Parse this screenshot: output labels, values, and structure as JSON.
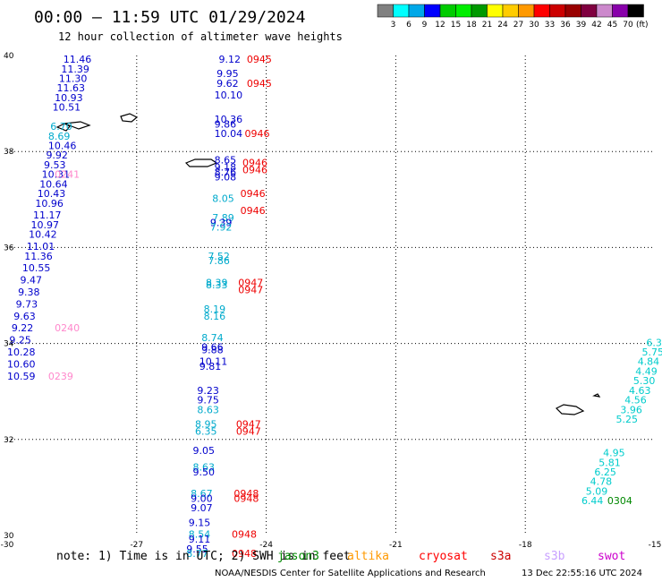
{
  "header": {
    "title": "00:00 – 11:59 UTC 01/29/2024",
    "subtitle": "12 hour collection of altimeter wave heights"
  },
  "legend": {
    "colors": [
      "#808080",
      "#00ffff",
      "#00a8e8",
      "#0000ff",
      "#00cc00",
      "#00ee00",
      "#009900",
      "#ffff00",
      "#ffcc00",
      "#ff9900",
      "#ff0000",
      "#cc0000",
      "#990000",
      "#800040",
      "#cc88cc",
      "#8800aa",
      "#000000"
    ],
    "labels": [
      "3",
      "6",
      "9",
      "12",
      "15",
      "18",
      "21",
      "24",
      "27",
      "30",
      "33",
      "36",
      "39",
      "42",
      "45",
      "70"
    ],
    "unit": "(ft)"
  },
  "footer": {
    "note": "note: 1) Time is in UTC; 2) SWH is in feet",
    "agency": "NOAA/NESDIS Center for Satellite Applications and Research",
    "timestamp": "13 Dec 22:55:16 UTC 2024",
    "satellites": [
      {
        "name": "jason3",
        "color": "#008800"
      },
      {
        "name": "altika",
        "color": "#ff9900"
      },
      {
        "name": "cryosat",
        "color": "#ff0000"
      },
      {
        "name": "s3a",
        "color": "#cc0000"
      },
      {
        "name": "s3b",
        "color": "#c8a0ff"
      },
      {
        "name": "swot",
        "color": "#cc00cc"
      }
    ]
  },
  "chart_data": {
    "type": "scatter",
    "title": "12 hour collection of altimeter wave heights",
    "xlim": [
      -30,
      -15
    ],
    "ylim": [
      30,
      40
    ],
    "x_ticks": [
      "-30",
      "-27",
      "-24",
      "-21",
      "-18",
      "-15"
    ],
    "y_ticks": [
      "30",
      "32",
      "34",
      "36",
      "38",
      "40"
    ],
    "grid": true,
    "values": [
      {
        "x": -28.7,
        "y": 39.85,
        "text": "11.46",
        "color": "#0000cc"
      },
      {
        "x": -28.75,
        "y": 39.65,
        "text": "11.39",
        "color": "#0000cc"
      },
      {
        "x": -28.8,
        "y": 39.45,
        "text": "11.30",
        "color": "#0000cc"
      },
      {
        "x": -28.85,
        "y": 39.25,
        "text": "11.63",
        "color": "#0000cc"
      },
      {
        "x": -28.9,
        "y": 39.05,
        "text": "10.93",
        "color": "#0000cc"
      },
      {
        "x": -28.95,
        "y": 38.85,
        "text": "10.51",
        "color": "#0000cc"
      },
      {
        "x": -29.0,
        "y": 38.45,
        "text": "6.70",
        "color": "#00aacc"
      },
      {
        "x": -29.05,
        "y": 38.25,
        "text": "8.69",
        "color": "#00aacc"
      },
      {
        "x": -29.05,
        "y": 38.05,
        "text": "10.46",
        "color": "#0000cc"
      },
      {
        "x": -29.1,
        "y": 37.85,
        "text": "9.92",
        "color": "#0000cc"
      },
      {
        "x": -29.15,
        "y": 37.65,
        "text": "9.53",
        "color": "#0000cc"
      },
      {
        "x": -29.2,
        "y": 37.45,
        "text": "10.31",
        "color": "#0000cc"
      },
      {
        "x": -29.25,
        "y": 37.25,
        "text": "10.64",
        "color": "#0000cc"
      },
      {
        "x": -29.3,
        "y": 37.05,
        "text": "10.43",
        "color": "#0000cc"
      },
      {
        "x": -29.35,
        "y": 36.85,
        "text": "10.96",
        "color": "#0000cc"
      },
      {
        "x": -29.4,
        "y": 36.6,
        "text": "11.17",
        "color": "#0000cc"
      },
      {
        "x": -29.45,
        "y": 36.4,
        "text": "10.97",
        "color": "#0000cc"
      },
      {
        "x": -29.5,
        "y": 36.2,
        "text": "10.42",
        "color": "#0000cc"
      },
      {
        "x": -29.55,
        "y": 35.95,
        "text": "11.01",
        "color": "#0000cc"
      },
      {
        "x": -29.6,
        "y": 35.75,
        "text": "11.36",
        "color": "#0000cc"
      },
      {
        "x": -29.65,
        "y": 35.5,
        "text": "10.55",
        "color": "#0000cc"
      },
      {
        "x": -29.7,
        "y": 35.25,
        "text": "9.47",
        "color": "#0000cc"
      },
      {
        "x": -29.75,
        "y": 35.0,
        "text": "9.38",
        "color": "#0000cc"
      },
      {
        "x": -29.8,
        "y": 34.75,
        "text": "9.73",
        "color": "#0000cc"
      },
      {
        "x": -29.85,
        "y": 34.5,
        "text": "9.63",
        "color": "#0000cc"
      },
      {
        "x": -29.9,
        "y": 34.25,
        "text": "9.22",
        "color": "#0000cc"
      },
      {
        "x": -29.95,
        "y": 34.0,
        "text": "9.25",
        "color": "#0000cc"
      },
      {
        "x": -30.0,
        "y": 33.75,
        "text": "10.28",
        "color": "#0000cc"
      },
      {
        "x": -30.0,
        "y": 33.5,
        "text": "10.60",
        "color": "#0000cc"
      },
      {
        "x": -30.0,
        "y": 33.25,
        "text": "10.59",
        "color": "#0000cc"
      },
      {
        "x": -28.9,
        "y": 37.45,
        "text": "0241",
        "color": "#ff88cc"
      },
      {
        "x": -28.9,
        "y": 34.25,
        "text": "0240",
        "color": "#ff88cc"
      },
      {
        "x": -29.05,
        "y": 33.25,
        "text": "0239",
        "color": "#ff88cc"
      },
      {
        "x": -25.1,
        "y": 39.85,
        "text": "9.12",
        "color": "#0000cc"
      },
      {
        "x": -25.15,
        "y": 39.55,
        "text": "9.95",
        "color": "#0000cc"
      },
      {
        "x": -25.15,
        "y": 39.35,
        "text": "9.62",
        "color": "#0000cc"
      },
      {
        "x": -25.2,
        "y": 39.1,
        "text": "10.10",
        "color": "#0000cc"
      },
      {
        "x": -25.2,
        "y": 38.6,
        "text": "10.36",
        "color": "#0000cc"
      },
      {
        "x": -25.2,
        "y": 38.5,
        "text": "9.86",
        "color": "#0000cc"
      },
      {
        "x": -25.2,
        "y": 38.3,
        "text": "10.04",
        "color": "#0000cc"
      },
      {
        "x": -25.2,
        "y": 37.75,
        "text": "8.65",
        "color": "#0000cc"
      },
      {
        "x": -25.2,
        "y": 37.6,
        "text": "9.18",
        "color": "#0000cc"
      },
      {
        "x": -25.2,
        "y": 37.5,
        "text": "8.76",
        "color": "#0000cc"
      },
      {
        "x": -25.2,
        "y": 37.4,
        "text": "9.08",
        "color": "#0000cc"
      },
      {
        "x": -25.25,
        "y": 36.95,
        "text": "8.05",
        "color": "#00aacc"
      },
      {
        "x": -25.25,
        "y": 36.55,
        "text": "7.89",
        "color": "#00aacc"
      },
      {
        "x": -25.3,
        "y": 36.45,
        "text": "9.39",
        "color": "#0000cc"
      },
      {
        "x": -25.3,
        "y": 36.35,
        "text": "7.92",
        "color": "#00aacc"
      },
      {
        "x": -25.35,
        "y": 35.75,
        "text": "7.52",
        "color": "#00aacc"
      },
      {
        "x": -25.35,
        "y": 35.65,
        "text": "7.86",
        "color": "#00aacc"
      },
      {
        "x": -25.4,
        "y": 35.2,
        "text": "8.39",
        "color": "#00aacc"
      },
      {
        "x": -25.4,
        "y": 35.15,
        "text": "8.33",
        "color": "#00aacc"
      },
      {
        "x": -25.45,
        "y": 34.65,
        "text": "8.19",
        "color": "#00aacc"
      },
      {
        "x": -25.45,
        "y": 34.5,
        "text": "8.16",
        "color": "#00aacc"
      },
      {
        "x": -25.5,
        "y": 34.05,
        "text": "8.74",
        "color": "#00aacc"
      },
      {
        "x": -25.5,
        "y": 33.85,
        "text": "9.66",
        "color": "#0000cc"
      },
      {
        "x": -25.5,
        "y": 33.8,
        "text": "9.88",
        "color": "#0000cc"
      },
      {
        "x": -25.55,
        "y": 33.55,
        "text": "10.11",
        "color": "#0000cc"
      },
      {
        "x": -25.55,
        "y": 33.45,
        "text": "9.81",
        "color": "#0000cc"
      },
      {
        "x": -25.6,
        "y": 32.95,
        "text": "9.23",
        "color": "#0000cc"
      },
      {
        "x": -25.6,
        "y": 32.75,
        "text": "9.75",
        "color": "#0000cc"
      },
      {
        "x": -25.6,
        "y": 32.55,
        "text": "8.63",
        "color": "#00aacc"
      },
      {
        "x": -25.65,
        "y": 32.25,
        "text": "8.95",
        "color": "#00aacc"
      },
      {
        "x": -25.65,
        "y": 32.1,
        "text": "6.35",
        "color": "#00aacc"
      },
      {
        "x": -25.7,
        "y": 31.7,
        "text": "9.05",
        "color": "#0000cc"
      },
      {
        "x": -25.7,
        "y": 31.35,
        "text": "8.63",
        "color": "#00aacc"
      },
      {
        "x": -25.7,
        "y": 31.25,
        "text": "9.50",
        "color": "#0000cc"
      },
      {
        "x": -25.75,
        "y": 30.8,
        "text": "8.67",
        "color": "#00aacc"
      },
      {
        "x": -25.75,
        "y": 30.7,
        "text": "9.00",
        "color": "#0000cc"
      },
      {
        "x": -25.75,
        "y": 30.5,
        "text": "9.07",
        "color": "#0000cc"
      },
      {
        "x": -25.8,
        "y": 30.2,
        "text": "9.15",
        "color": "#0000cc"
      },
      {
        "x": -25.8,
        "y": 29.95,
        "text": "8.54",
        "color": "#00aacc"
      },
      {
        "x": -25.8,
        "y": 29.85,
        "text": "9.11",
        "color": "#0000cc"
      },
      {
        "x": -25.85,
        "y": 29.65,
        "text": "9.55",
        "color": "#0000cc"
      },
      {
        "x": -25.85,
        "y": 29.55,
        "text": "8.77",
        "color": "#00aacc"
      },
      {
        "x": -24.45,
        "y": 39.85,
        "text": "0945",
        "color": "#ee0000"
      },
      {
        "x": -24.45,
        "y": 39.35,
        "text": "0945",
        "color": "#ee0000"
      },
      {
        "x": -24.5,
        "y": 38.3,
        "text": "0946",
        "color": "#ee0000"
      },
      {
        "x": -24.55,
        "y": 37.7,
        "text": "0946",
        "color": "#ee0000"
      },
      {
        "x": -24.55,
        "y": 37.55,
        "text": "0946",
        "color": "#ee0000"
      },
      {
        "x": -24.6,
        "y": 37.05,
        "text": "0946",
        "color": "#ee0000"
      },
      {
        "x": -24.6,
        "y": 36.7,
        "text": "0946",
        "color": "#ee0000"
      },
      {
        "x": -24.65,
        "y": 35.2,
        "text": "0947",
        "color": "#ee0000"
      },
      {
        "x": -24.65,
        "y": 35.05,
        "text": "0947",
        "color": "#ee0000"
      },
      {
        "x": -24.7,
        "y": 32.25,
        "text": "0947",
        "color": "#ee0000"
      },
      {
        "x": -24.7,
        "y": 32.1,
        "text": "0947",
        "color": "#ee0000"
      },
      {
        "x": -24.75,
        "y": 30.8,
        "text": "0948",
        "color": "#ee0000"
      },
      {
        "x": -24.75,
        "y": 30.7,
        "text": "0948",
        "color": "#ee0000"
      },
      {
        "x": -24.8,
        "y": 29.95,
        "text": "0948",
        "color": "#ee0000"
      },
      {
        "x": -24.8,
        "y": 29.55,
        "text": "0948",
        "color": "#ee0000"
      },
      {
        "x": -15.2,
        "y": 33.95,
        "text": "6.3",
        "color": "#00cccc"
      },
      {
        "x": -15.3,
        "y": 33.75,
        "text": "5.75",
        "color": "#00cccc"
      },
      {
        "x": -15.4,
        "y": 33.55,
        "text": "4.84",
        "color": "#00cccc"
      },
      {
        "x": -15.45,
        "y": 33.35,
        "text": "4.49",
        "color": "#00cccc"
      },
      {
        "x": -15.5,
        "y": 33.15,
        "text": "5.30",
        "color": "#00cccc"
      },
      {
        "x": -15.6,
        "y": 32.95,
        "text": "4.63",
        "color": "#00cccc"
      },
      {
        "x": -15.7,
        "y": 32.75,
        "text": "4.56",
        "color": "#00cccc"
      },
      {
        "x": -15.8,
        "y": 32.55,
        "text": "3.96",
        "color": "#00cccc"
      },
      {
        "x": -15.9,
        "y": 32.35,
        "text": "5.25",
        "color": "#00cccc"
      },
      {
        "x": -16.2,
        "y": 31.65,
        "text": "4.95",
        "color": "#00cccc"
      },
      {
        "x": -16.3,
        "y": 31.45,
        "text": "5.81",
        "color": "#00cccc"
      },
      {
        "x": -16.4,
        "y": 31.25,
        "text": "6.25",
        "color": "#00cccc"
      },
      {
        "x": -16.5,
        "y": 31.05,
        "text": "4.78",
        "color": "#00cccc"
      },
      {
        "x": -16.6,
        "y": 30.85,
        "text": "5.09",
        "color": "#00cccc"
      },
      {
        "x": -16.7,
        "y": 30.65,
        "text": "6.44",
        "color": "#00cccc"
      },
      {
        "x": -16.1,
        "y": 30.65,
        "text": "0304",
        "color": "#008800"
      }
    ]
  }
}
